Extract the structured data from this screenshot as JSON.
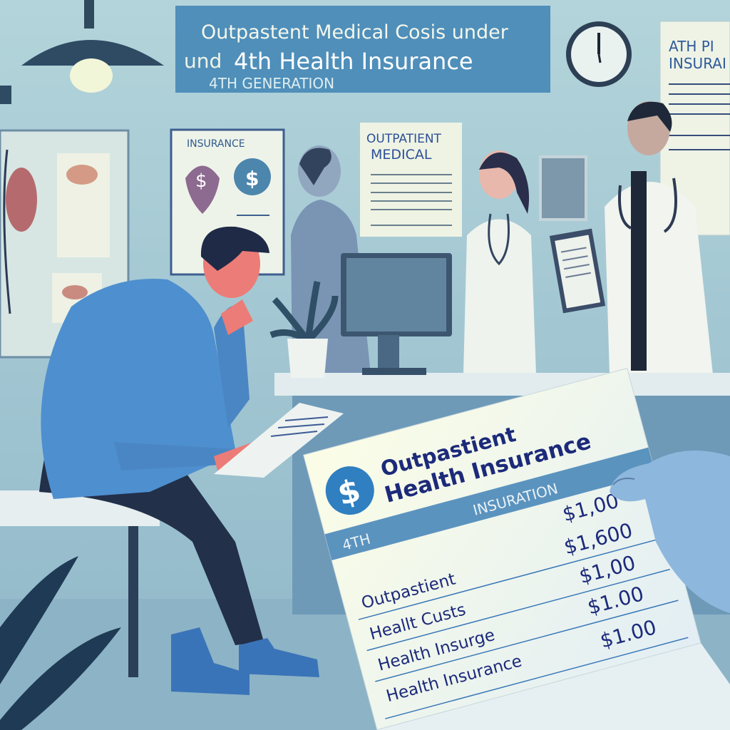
{
  "banner": {
    "line1": "Outpastent Medical Cosis under",
    "line2_prefix": "und",
    "line2_main": "4th  Health Insurance",
    "line3": "4TH GENERATION"
  },
  "insurance_poster": {
    "title": "INSURANCE"
  },
  "outpatient_poster": {
    "line1": "OUTPATIENT",
    "line2": "MEDICAL"
  },
  "right_poster": {
    "line1": "ATH PI",
    "line2": "INSURAI"
  },
  "receipt": {
    "title_line1": "Outpastient",
    "title_line2": "Health Insurance",
    "band_left": "4TH",
    "band_right": "INSURATION",
    "rows": [
      {
        "label": "",
        "amount": "$1,00"
      },
      {
        "label": "Outpastient",
        "amount": "$1,600"
      },
      {
        "label": "Heallt Custs",
        "amount": "$1,00"
      },
      {
        "label": "Health Insurge",
        "amount": "$1.00"
      },
      {
        "label": "Health Insurance",
        "amount": "$1.00"
      }
    ]
  },
  "colors": {
    "wall": "#a7cbd5",
    "banner": "#4f8fba",
    "shirt": "#4e8fcf",
    "receipt_blue": "#2f7fc1",
    "text_navy": "#1c2a7a"
  },
  "icons": [
    "lamp-icon",
    "clock-icon",
    "dollar-icon",
    "stethoscope-icon"
  ]
}
